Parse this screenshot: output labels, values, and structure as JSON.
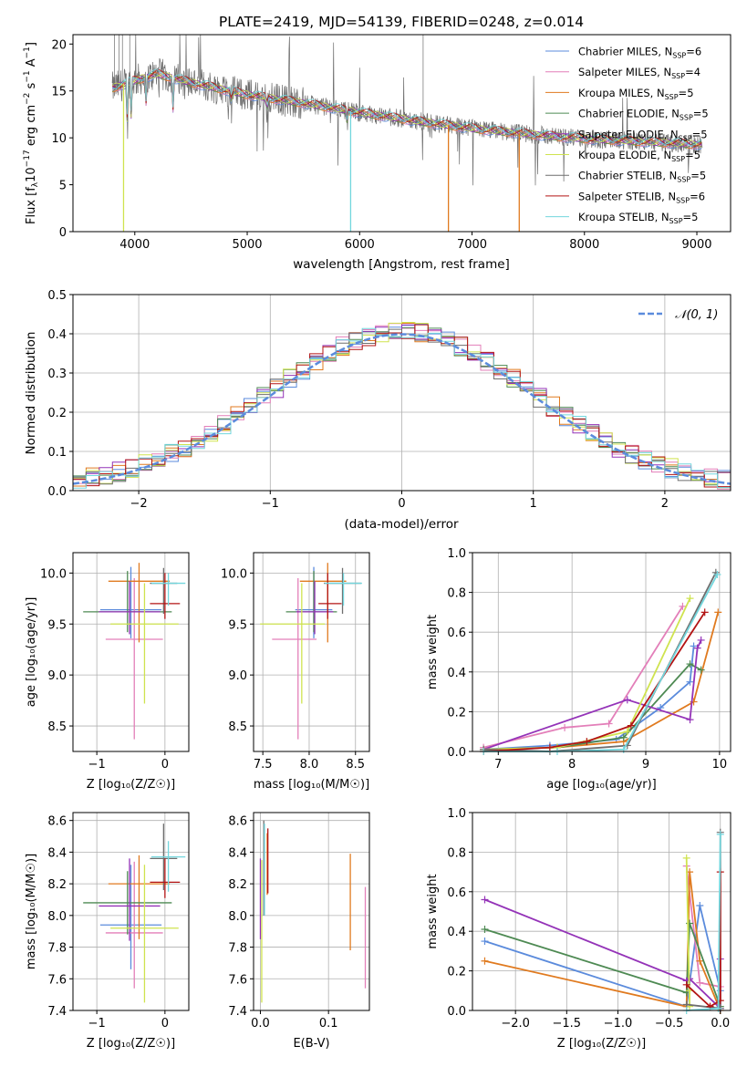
{
  "colors": {
    "Chabrier MILES": "#5b8bdc",
    "Salpeter MILES": "#e37fb9",
    "Kroupa MILES": "#e07a1f",
    "Chabrier ELODIE": "#4e8a53",
    "Salpeter ELODIE": "#9433b8",
    "Kroupa ELODIE": "#cfe34f",
    "Chabrier STELIB": "#6e6e6e",
    "Salpeter STELIB": "#b31414",
    "Kroupa STELIB": "#72d6dd",
    "normal": "#5b8bdc",
    "grid": "#b0b0b0"
  },
  "chart_data": [
    {
      "type": "line",
      "title": "PLATE=2419, MJD=54139, FIBERID=0248, z=0.014",
      "xlabel": "wavelength [Angstrom, rest frame]",
      "ylabel_main": "Flux [f",
      "ylabel_sub": "λ",
      "ylabel_mid": "10",
      "ylabel_sup": "−17",
      "ylabel_end": " erg cm",
      "ylabel_sup2": "−2",
      "ylabel_tail": " s",
      "ylabel_sup3": "−1",
      "ylabel_last": " A",
      "ylabel_sup4": "−1",
      "ylabel_close": "]",
      "xlim": [
        3450,
        9300
      ],
      "ylim": [
        0,
        21
      ],
      "xticks": [
        "4000",
        "5000",
        "6000",
        "7000",
        "8000",
        "9000"
      ],
      "yticks": [
        "0",
        "5",
        "10",
        "15",
        "20"
      ],
      "grid": false,
      "legend_placement": "top-right",
      "continuum": [
        [
          3800,
          15.3
        ],
        [
          4000,
          16.1
        ],
        [
          4200,
          16.8
        ],
        [
          4500,
          15.9
        ],
        [
          5000,
          14.6
        ],
        [
          5500,
          13.7
        ],
        [
          6000,
          12.7
        ],
        [
          6500,
          11.8
        ],
        [
          7000,
          11.0
        ],
        [
          7500,
          10.4
        ],
        [
          8000,
          9.9
        ],
        [
          8500,
          9.6
        ],
        [
          9000,
          9.3
        ]
      ],
      "legend": [
        {
          "name": "Chabrier MILES",
          "nssp": "6"
        },
        {
          "name": "Salpeter MILES",
          "nssp": "4"
        },
        {
          "name": "Kroupa MILES",
          "nssp": "5"
        },
        {
          "name": "Chabrier ELODIE",
          "nssp": "5"
        },
        {
          "name": "Salpeter ELODIE",
          "nssp": "5"
        },
        {
          "name": "Kroupa ELODIE",
          "nssp": "5"
        },
        {
          "name": "Chabrier STELIB",
          "nssp": "5"
        },
        {
          "name": "Salpeter STELIB",
          "nssp": "6"
        },
        {
          "name": "Kroupa STELIB",
          "nssp": "5"
        }
      ],
      "legend_prefix": "N",
      "legend_sub": "SSP",
      "dropouts": [
        [
          3900,
          "Kroupa ELODIE"
        ],
        [
          5920,
          "Kroupa STELIB"
        ],
        [
          6790,
          "Kroupa MILES"
        ],
        [
          7420,
          "Kroupa MILES"
        ]
      ]
    },
    {
      "type": "line",
      "xlabel": "(data-model)/error",
      "ylabel": "Normed distribution",
      "xlim": [
        -2.5,
        2.5
      ],
      "ylim": [
        0,
        0.5
      ],
      "xticks": [
        "−2",
        "−1",
        "0",
        "1",
        "2"
      ],
      "xtick_values": [
        -2,
        -1,
        0,
        1,
        2
      ],
      "yticks": [
        "0.0",
        "0.1",
        "0.2",
        "0.3",
        "0.4",
        "0.5"
      ],
      "grid": true,
      "legend": "𝒩(0, 1)",
      "legend_placement": "top-right",
      "bin_width": 0.1
    },
    {
      "type": "scatter",
      "xlabel": "Z [log₁₀(Z/Z☉)]",
      "ylabel": "age  [log₁₀(age/yr)]",
      "xlim": [
        -1.35,
        0.35
      ],
      "ylim": [
        8.25,
        10.2
      ],
      "xticks": [
        "−1",
        "0"
      ],
      "xtick_values": [
        -1,
        0
      ],
      "yticks": [
        "8.5",
        "9.0",
        "9.5",
        "10.0"
      ],
      "ytick_values": [
        8.5,
        9.0,
        9.5,
        10.0
      ],
      "points": [
        {
          "series": "Chabrier MILES",
          "x": -0.5,
          "y": 9.64,
          "xerr": [
            0.45,
            0.45
          ],
          "yerr": [
            0.28,
            0.42
          ]
        },
        {
          "series": "Salpeter MILES",
          "x": -0.45,
          "y": 9.35,
          "xerr": [
            0.42,
            0.42
          ],
          "yerr": [
            0.98,
            0.6
          ]
        },
        {
          "series": "Kroupa MILES",
          "x": -0.38,
          "y": 9.92,
          "xerr": [
            0.45,
            0.45
          ],
          "yerr": [
            0.6,
            0.18
          ]
        },
        {
          "series": "Chabrier ELODIE",
          "x": -0.55,
          "y": 9.62,
          "xerr": [
            0.65,
            0.65
          ],
          "yerr": [
            0.2,
            0.4
          ]
        },
        {
          "series": "Salpeter ELODIE",
          "x": -0.52,
          "y": 9.62,
          "xerr": [
            0.45,
            0.45
          ],
          "yerr": [
            0.22,
            0.3
          ]
        },
        {
          "series": "Kroupa ELODIE",
          "x": -0.3,
          "y": 9.5,
          "xerr": [
            0.5,
            0.5
          ],
          "yerr": [
            0.78,
            0.4
          ]
        },
        {
          "series": "Chabrier STELIB",
          "x": -0.02,
          "y": 9.9,
          "xerr": [
            0.2,
            0.2
          ],
          "yerr": [
            0.3,
            0.15
          ]
        },
        {
          "series": "Salpeter STELIB",
          "x": 0.0,
          "y": 9.7,
          "xerr": [
            0.22,
            0.22
          ],
          "yerr": [
            0.15,
            0.3
          ]
        },
        {
          "series": "Kroupa STELIB",
          "x": 0.05,
          "y": 9.9,
          "xerr": [
            0.25,
            0.25
          ],
          "yerr": [
            0.22,
            0.1
          ]
        }
      ]
    },
    {
      "type": "scatter",
      "xlabel": "mass [log₁₀(M/M☉)]",
      "xlim": [
        7.4,
        8.65
      ],
      "ylim": [
        8.25,
        10.2
      ],
      "xticks": [
        "7.5",
        "8.0",
        "8.5"
      ],
      "xtick_values": [
        7.5,
        8.0,
        8.5
      ],
      "yticks": [
        "8.5",
        "9.0",
        "9.5",
        "10.0"
      ],
      "ytick_values": [
        8.5,
        9.0,
        9.5,
        10.0
      ],
      "points": [
        {
          "series": "Chabrier MILES",
          "x": 8.05,
          "y": 9.64,
          "xerr": [
            0.2,
            0.2
          ],
          "yerr": [
            0.28,
            0.42
          ]
        },
        {
          "series": "Salpeter MILES",
          "x": 7.88,
          "y": 9.35,
          "xerr": [
            0.28,
            0.2
          ],
          "yerr": [
            0.98,
            0.6
          ]
        },
        {
          "series": "Kroupa MILES",
          "x": 8.2,
          "y": 9.92,
          "xerr": [
            0.3,
            0.2
          ],
          "yerr": [
            0.6,
            0.18
          ]
        },
        {
          "series": "Chabrier ELODIE",
          "x": 8.05,
          "y": 9.62,
          "xerr": [
            0.3,
            0.25
          ],
          "yerr": [
            0.2,
            0.4
          ]
        },
        {
          "series": "Salpeter ELODIE",
          "x": 8.06,
          "y": 9.62,
          "xerr": [
            0.2,
            0.2
          ],
          "yerr": [
            0.22,
            0.3
          ]
        },
        {
          "series": "Kroupa ELODIE",
          "x": 7.92,
          "y": 9.5,
          "xerr": [
            0.45,
            0.25
          ],
          "yerr": [
            0.78,
            0.4
          ]
        },
        {
          "series": "Chabrier STELIB",
          "x": 8.36,
          "y": 9.9,
          "xerr": [
            0.2,
            0.2
          ],
          "yerr": [
            0.3,
            0.15
          ]
        },
        {
          "series": "Salpeter STELIB",
          "x": 8.2,
          "y": 9.7,
          "xerr": [
            0.1,
            0.15
          ],
          "yerr": [
            0.15,
            0.3
          ]
        },
        {
          "series": "Kroupa STELIB",
          "x": 8.37,
          "y": 9.9,
          "xerr": [
            0.2,
            0.2
          ],
          "yerr": [
            0.22,
            0.1
          ]
        }
      ]
    },
    {
      "type": "line",
      "xlabel": "age  [log₁₀(age/yr)]",
      "ylabel": "mass weight",
      "xlim": [
        6.65,
        10.15
      ],
      "ylim": [
        0,
        1.0
      ],
      "xticks": [
        "7",
        "8",
        "9",
        "10"
      ],
      "xtick_values": [
        7,
        8,
        9,
        10
      ],
      "yticks": [
        "0.0",
        "0.2",
        "0.4",
        "0.6",
        "0.8",
        "1.0"
      ],
      "ytick_values": [
        0,
        0.2,
        0.4,
        0.6,
        0.8,
        1.0
      ],
      "grid": true,
      "series": [
        {
          "name": "Chabrier MILES",
          "x": [
            6.8,
            7.7,
            8.6,
            9.2,
            9.6,
            9.65
          ],
          "y": [
            0.01,
            0.03,
            0.06,
            0.22,
            0.35,
            0.53
          ]
        },
        {
          "name": "Salpeter MILES",
          "x": [
            6.8,
            7.9,
            8.5,
            9.5
          ],
          "y": [
            0.02,
            0.12,
            0.14,
            0.73
          ]
        },
        {
          "name": "Kroupa MILES",
          "x": [
            6.8,
            7.8,
            8.7,
            9.65,
            9.98
          ],
          "y": [
            0.01,
            0.02,
            0.05,
            0.25,
            0.7
          ]
        },
        {
          "name": "Chabrier ELODIE",
          "x": [
            6.8,
            7.8,
            8.7,
            9.6,
            9.75
          ],
          "y": [
            0.01,
            0.02,
            0.07,
            0.44,
            0.41
          ]
        },
        {
          "name": "Salpeter ELODIE",
          "x": [
            6.8,
            8.75,
            9.6,
            9.7,
            9.75
          ],
          "y": [
            0.01,
            0.26,
            0.16,
            0.52,
            0.56
          ]
        },
        {
          "name": "Kroupa ELODIE",
          "x": [
            6.8,
            7.8,
            8.75,
            9.6
          ],
          "y": [
            0.01,
            0.02,
            0.1,
            0.77
          ]
        },
        {
          "name": "Chabrier STELIB",
          "x": [
            6.8,
            7.7,
            8.75,
            9.95
          ],
          "y": [
            0.01,
            0.0,
            0.03,
            0.9
          ]
        },
        {
          "name": "Salpeter STELIB",
          "x": [
            6.8,
            7.7,
            8.2,
            8.8,
            9.8
          ],
          "y": [
            0.0,
            0.02,
            0.05,
            0.13,
            0.7
          ]
        },
        {
          "name": "Kroupa STELIB",
          "x": [
            6.8,
            7.8,
            8.7,
            9.97
          ],
          "y": [
            0.0,
            0.0,
            0.01,
            0.89
          ]
        }
      ]
    },
    {
      "type": "scatter",
      "xlabel": "Z [log₁₀(Z/Z☉)]",
      "ylabel": "mass [log₁₀(M/M☉)]",
      "xlim": [
        -1.35,
        0.35
      ],
      "ylim": [
        7.4,
        8.65
      ],
      "xticks": [
        "−1",
        "0"
      ],
      "xtick_values": [
        -1,
        0
      ],
      "yticks": [
        "7.4",
        "7.6",
        "7.8",
        "8.0",
        "8.2",
        "8.4",
        "8.6"
      ],
      "ytick_values": [
        7.4,
        7.6,
        7.8,
        8.0,
        8.2,
        8.4,
        8.6
      ],
      "points": [
        {
          "series": "Chabrier MILES",
          "x": -0.5,
          "y": 7.94,
          "xerr": [
            0.45,
            0.45
          ],
          "yerr": [
            0.28,
            0.38
          ]
        },
        {
          "series": "Salpeter MILES",
          "x": -0.45,
          "y": 7.89,
          "xerr": [
            0.42,
            0.42
          ],
          "yerr": [
            0.35,
            0.45
          ]
        },
        {
          "series": "Kroupa MILES",
          "x": -0.38,
          "y": 8.2,
          "xerr": [
            0.45,
            0.45
          ],
          "yerr": [
            0.35,
            0.18
          ]
        },
        {
          "series": "Chabrier ELODIE",
          "x": -0.55,
          "y": 8.08,
          "xerr": [
            0.65,
            0.65
          ],
          "yerr": [
            0.2,
            0.2
          ]
        },
        {
          "series": "Salpeter ELODIE",
          "x": -0.52,
          "y": 8.06,
          "xerr": [
            0.45,
            0.45
          ],
          "yerr": [
            0.22,
            0.3
          ]
        },
        {
          "series": "Kroupa ELODIE",
          "x": -0.3,
          "y": 7.92,
          "xerr": [
            0.5,
            0.5
          ],
          "yerr": [
            0.47,
            0.4
          ]
        },
        {
          "series": "Chabrier STELIB",
          "x": -0.02,
          "y": 8.36,
          "xerr": [
            0.2,
            0.2
          ],
          "yerr": [
            0.2,
            0.22
          ]
        },
        {
          "series": "Salpeter STELIB",
          "x": 0.0,
          "y": 8.21,
          "xerr": [
            0.22,
            0.22
          ],
          "yerr": [
            0.1,
            0.15
          ]
        },
        {
          "series": "Kroupa STELIB",
          "x": 0.05,
          "y": 8.37,
          "xerr": [
            0.25,
            0.25
          ],
          "yerr": [
            0.22,
            0.1
          ]
        }
      ]
    },
    {
      "type": "scatter",
      "xlabel": "E(B-V)",
      "xlim": [
        -0.01,
        0.16
      ],
      "ylim": [
        7.4,
        8.65
      ],
      "xticks": [
        "0.0",
        "0.1"
      ],
      "xtick_values": [
        0.0,
        0.1
      ],
      "yticks": [
        "7.4",
        "7.6",
        "7.8",
        "8.0",
        "8.2",
        "8.4",
        "8.6"
      ],
      "ytick_values": [
        7.4,
        7.6,
        7.8,
        8.0,
        8.2,
        8.4,
        8.6
      ],
      "bars": [
        {
          "series": "Salpeter ELODIE",
          "x": 0.0,
          "y0": 7.85,
          "y1": 8.36
        },
        {
          "series": "Kroupa ELODIE",
          "x": 0.002,
          "y0": 7.45,
          "y1": 8.35
        },
        {
          "series": "Chabrier STELIB",
          "x": 0.005,
          "y0": 8.0,
          "y1": 8.6
        },
        {
          "series": "Kroupa STELIB",
          "x": 0.006,
          "y0": 8.0,
          "y1": 8.58
        },
        {
          "series": "Kroupa MILES",
          "x": 0.01,
          "y0": 8.13,
          "y1": 8.52
        },
        {
          "series": "Salpeter STELIB",
          "x": 0.011,
          "y0": 8.14,
          "y1": 8.55
        },
        {
          "series": "Kroupa MILES",
          "x": 0.132,
          "y0": 7.78,
          "y1": 8.39
        },
        {
          "series": "Salpeter MILES",
          "x": 0.154,
          "y0": 7.54,
          "y1": 8.18
        }
      ]
    },
    {
      "type": "line",
      "xlabel": "Z [log₁₀(Z/Z☉)]",
      "ylabel": "mass weight",
      "xlim": [
        -2.42,
        0.1
      ],
      "ylim": [
        0,
        1.0
      ],
      "xticks": [
        "−2.0",
        "−1.5",
        "−1.0",
        "−0.5",
        "0.0"
      ],
      "xtick_values": [
        -2.0,
        -1.5,
        -1.0,
        -0.5,
        0.0
      ],
      "yticks": [
        "0.0",
        "0.2",
        "0.4",
        "0.6",
        "0.8",
        "1.0"
      ],
      "ytick_values": [
        0,
        0.2,
        0.4,
        0.6,
        0.8,
        1.0
      ],
      "grid": true,
      "series": [
        {
          "name": "Chabrier MILES",
          "x": [
            -2.3,
            -0.33,
            -0.2,
            0.0
          ],
          "y": [
            0.35,
            0.02,
            0.53,
            0.1
          ]
        },
        {
          "name": "Salpeter MILES",
          "x": [
            -0.33,
            -0.2,
            0.0
          ],
          "y": [
            0.73,
            0.14,
            0.12
          ]
        },
        {
          "name": "Kroupa MILES",
          "x": [
            -2.3,
            -0.33,
            -0.3,
            -0.2,
            0.0
          ],
          "y": [
            0.25,
            0.02,
            0.7,
            0.25,
            0.0
          ]
        },
        {
          "name": "Chabrier ELODIE",
          "x": [
            -2.3,
            -0.33,
            -0.3,
            0.0
          ],
          "y": [
            0.41,
            0.09,
            0.44,
            0.02
          ]
        },
        {
          "name": "Salpeter ELODIE",
          "x": [
            -2.3,
            -0.33,
            -0.3,
            0.0,
            0.0
          ],
          "y": [
            0.56,
            0.15,
            0.16,
            0.01,
            0.26
          ]
        },
        {
          "name": "Kroupa ELODIE",
          "x": [
            -0.33,
            -0.3,
            -0.3
          ],
          "y": [
            0.77,
            0.02,
            0.1
          ]
        },
        {
          "name": "Chabrier STELIB",
          "x": [
            -0.33,
            0.0,
            0.0
          ],
          "y": [
            0.03,
            0.01,
            0.9
          ]
        },
        {
          "name": "Salpeter STELIB",
          "x": [
            -0.33,
            -0.1,
            0.0,
            0.0
          ],
          "y": [
            0.13,
            0.02,
            0.05,
            0.7
          ]
        },
        {
          "name": "Kroupa STELIB",
          "x": [
            -0.33,
            -0.02,
            0.0
          ],
          "y": [
            0.0,
            0.01,
            0.89
          ]
        }
      ]
    }
  ]
}
